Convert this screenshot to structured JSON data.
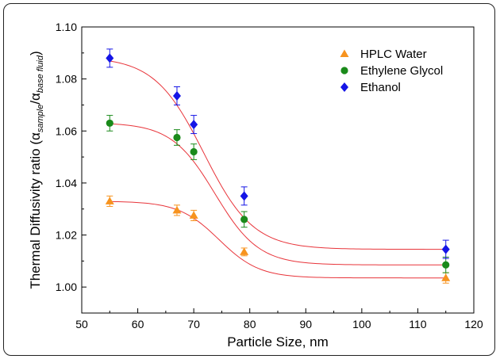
{
  "chart_data": {
    "type": "scatter",
    "title": "",
    "xlabel": "Particle Size, nm",
    "ylabel": "Thermal Diffusivity ratio (α_sample/α_base fluid)",
    "ylabel_parts": {
      "prefix": "Thermal Diffusivity ratio (α",
      "sub1": "sample",
      "slash": "/α",
      "sub2": "base fluid",
      "suffix": ")"
    },
    "xlim": [
      50,
      120
    ],
    "ylim": [
      0.99,
      1.1
    ],
    "xticks": [
      "50",
      "60",
      "70",
      "80",
      "90",
      "100",
      "110",
      "120"
    ],
    "yticks": [
      "1.00",
      "1.02",
      "1.04",
      "1.06",
      "1.08",
      "1.10"
    ],
    "legend_position": "top-right",
    "fit_color": "#e8343a",
    "series": [
      {
        "name": "HPLC Water",
        "marker": "triangle",
        "color": "#f7931e",
        "x": [
          55,
          67,
          70,
          79,
          115
        ],
        "y": [
          1.033,
          1.0295,
          1.0275,
          1.0135,
          1.0035
        ],
        "err": [
          0.002,
          0.002,
          0.002,
          0.0015,
          0.002
        ],
        "fit": {
          "low": 1.0035,
          "high": 1.033,
          "mid": 74.5,
          "width": 3.6
        }
      },
      {
        "name": "Ethylene Glycol",
        "marker": "circle",
        "color": "#1a8a1a",
        "x": [
          55,
          67,
          70,
          79,
          115
        ],
        "y": [
          1.063,
          1.0575,
          1.052,
          1.026,
          1.0085
        ],
        "err": [
          0.003,
          0.003,
          0.003,
          0.003,
          0.003
        ],
        "fit": {
          "low": 1.0085,
          "high": 1.0632,
          "mid": 73.8,
          "width": 3.9
        }
      },
      {
        "name": "Ethanol",
        "marker": "diamond",
        "color": "#1515e6",
        "x": [
          55,
          67,
          70,
          79,
          115
        ],
        "y": [
          1.088,
          1.0735,
          1.0625,
          1.035,
          1.0145
        ],
        "err": [
          0.0035,
          0.0035,
          0.0035,
          0.0035,
          0.0035
        ],
        "fit": {
          "low": 1.0145,
          "high": 1.0885,
          "mid": 71.8,
          "width": 4.4
        }
      }
    ]
  }
}
